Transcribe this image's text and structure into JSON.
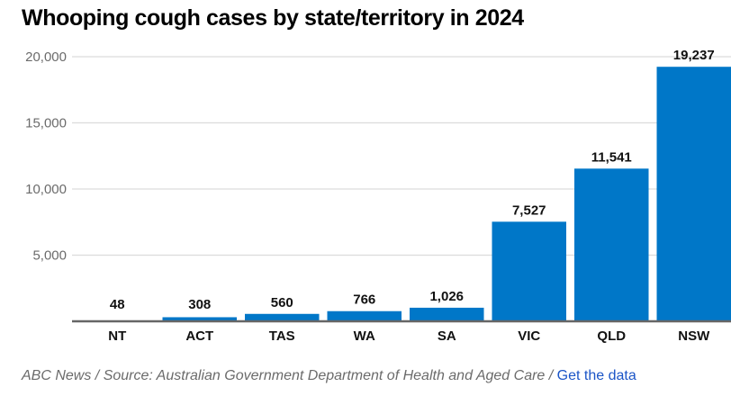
{
  "chart_data": {
    "type": "bar",
    "title": "Whooping cough cases by state/territory in 2024",
    "categories": [
      "NT",
      "ACT",
      "TAS",
      "WA",
      "SA",
      "VIC",
      "QLD",
      "NSW"
    ],
    "values": [
      48,
      308,
      560,
      766,
      1026,
      7527,
      11541,
      19237
    ],
    "data_labels": [
      "48",
      "308",
      "560",
      "766",
      "1,026",
      "7,527",
      "11,541",
      "19,237"
    ],
    "xlabel": "",
    "ylabel": "",
    "ylim": [
      0,
      20000
    ],
    "yticks": [
      5000,
      10000,
      15000,
      20000
    ],
    "ytick_labels": [
      "5,000",
      "10,000",
      "15,000",
      "20,000"
    ],
    "grid": true,
    "bar_color": "#0077c8"
  },
  "footer": {
    "credit": "ABC News / Source: Australian Government Department of Health and Aged Care / ",
    "link_label": "Get the data",
    "link_color": "#1b55c7"
  }
}
